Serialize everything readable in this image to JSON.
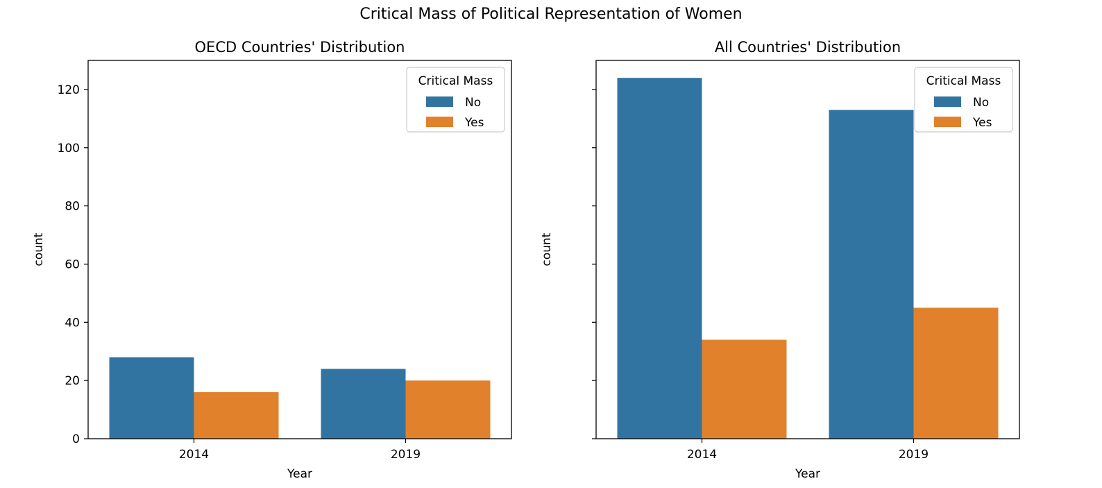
{
  "figure": {
    "suptitle": "Critical Mass of Political Representation of Women"
  },
  "colors": {
    "No": "#3274a1",
    "Yes": "#e1812c"
  },
  "chart_data": [
    {
      "type": "bar",
      "title": "OECD Countries' Distribution",
      "xlabel": "Year",
      "ylabel": "count",
      "categories": [
        "2014",
        "2019"
      ],
      "series": [
        {
          "name": "No",
          "values": [
            28,
            24
          ]
        },
        {
          "name": "Yes",
          "values": [
            16,
            20
          ]
        }
      ],
      "ylim": [
        0,
        130
      ],
      "yticks": [
        0,
        20,
        40,
        60,
        80,
        100,
        120
      ],
      "ytick_labels_visible": true,
      "legend": {
        "title": "Critical Mass",
        "placement": "top-right"
      },
      "grid": false
    },
    {
      "type": "bar",
      "title": "All Countries' Distribution",
      "xlabel": "Year",
      "ylabel": "count",
      "categories": [
        "2014",
        "2019"
      ],
      "series": [
        {
          "name": "No",
          "values": [
            124,
            113
          ]
        },
        {
          "name": "Yes",
          "values": [
            34,
            45
          ]
        }
      ],
      "ylim": [
        0,
        130
      ],
      "yticks": [
        0,
        20,
        40,
        60,
        80,
        100,
        120
      ],
      "ytick_labels_visible": false,
      "legend": {
        "title": "Critical Mass",
        "placement": "top-right"
      },
      "grid": false
    }
  ]
}
